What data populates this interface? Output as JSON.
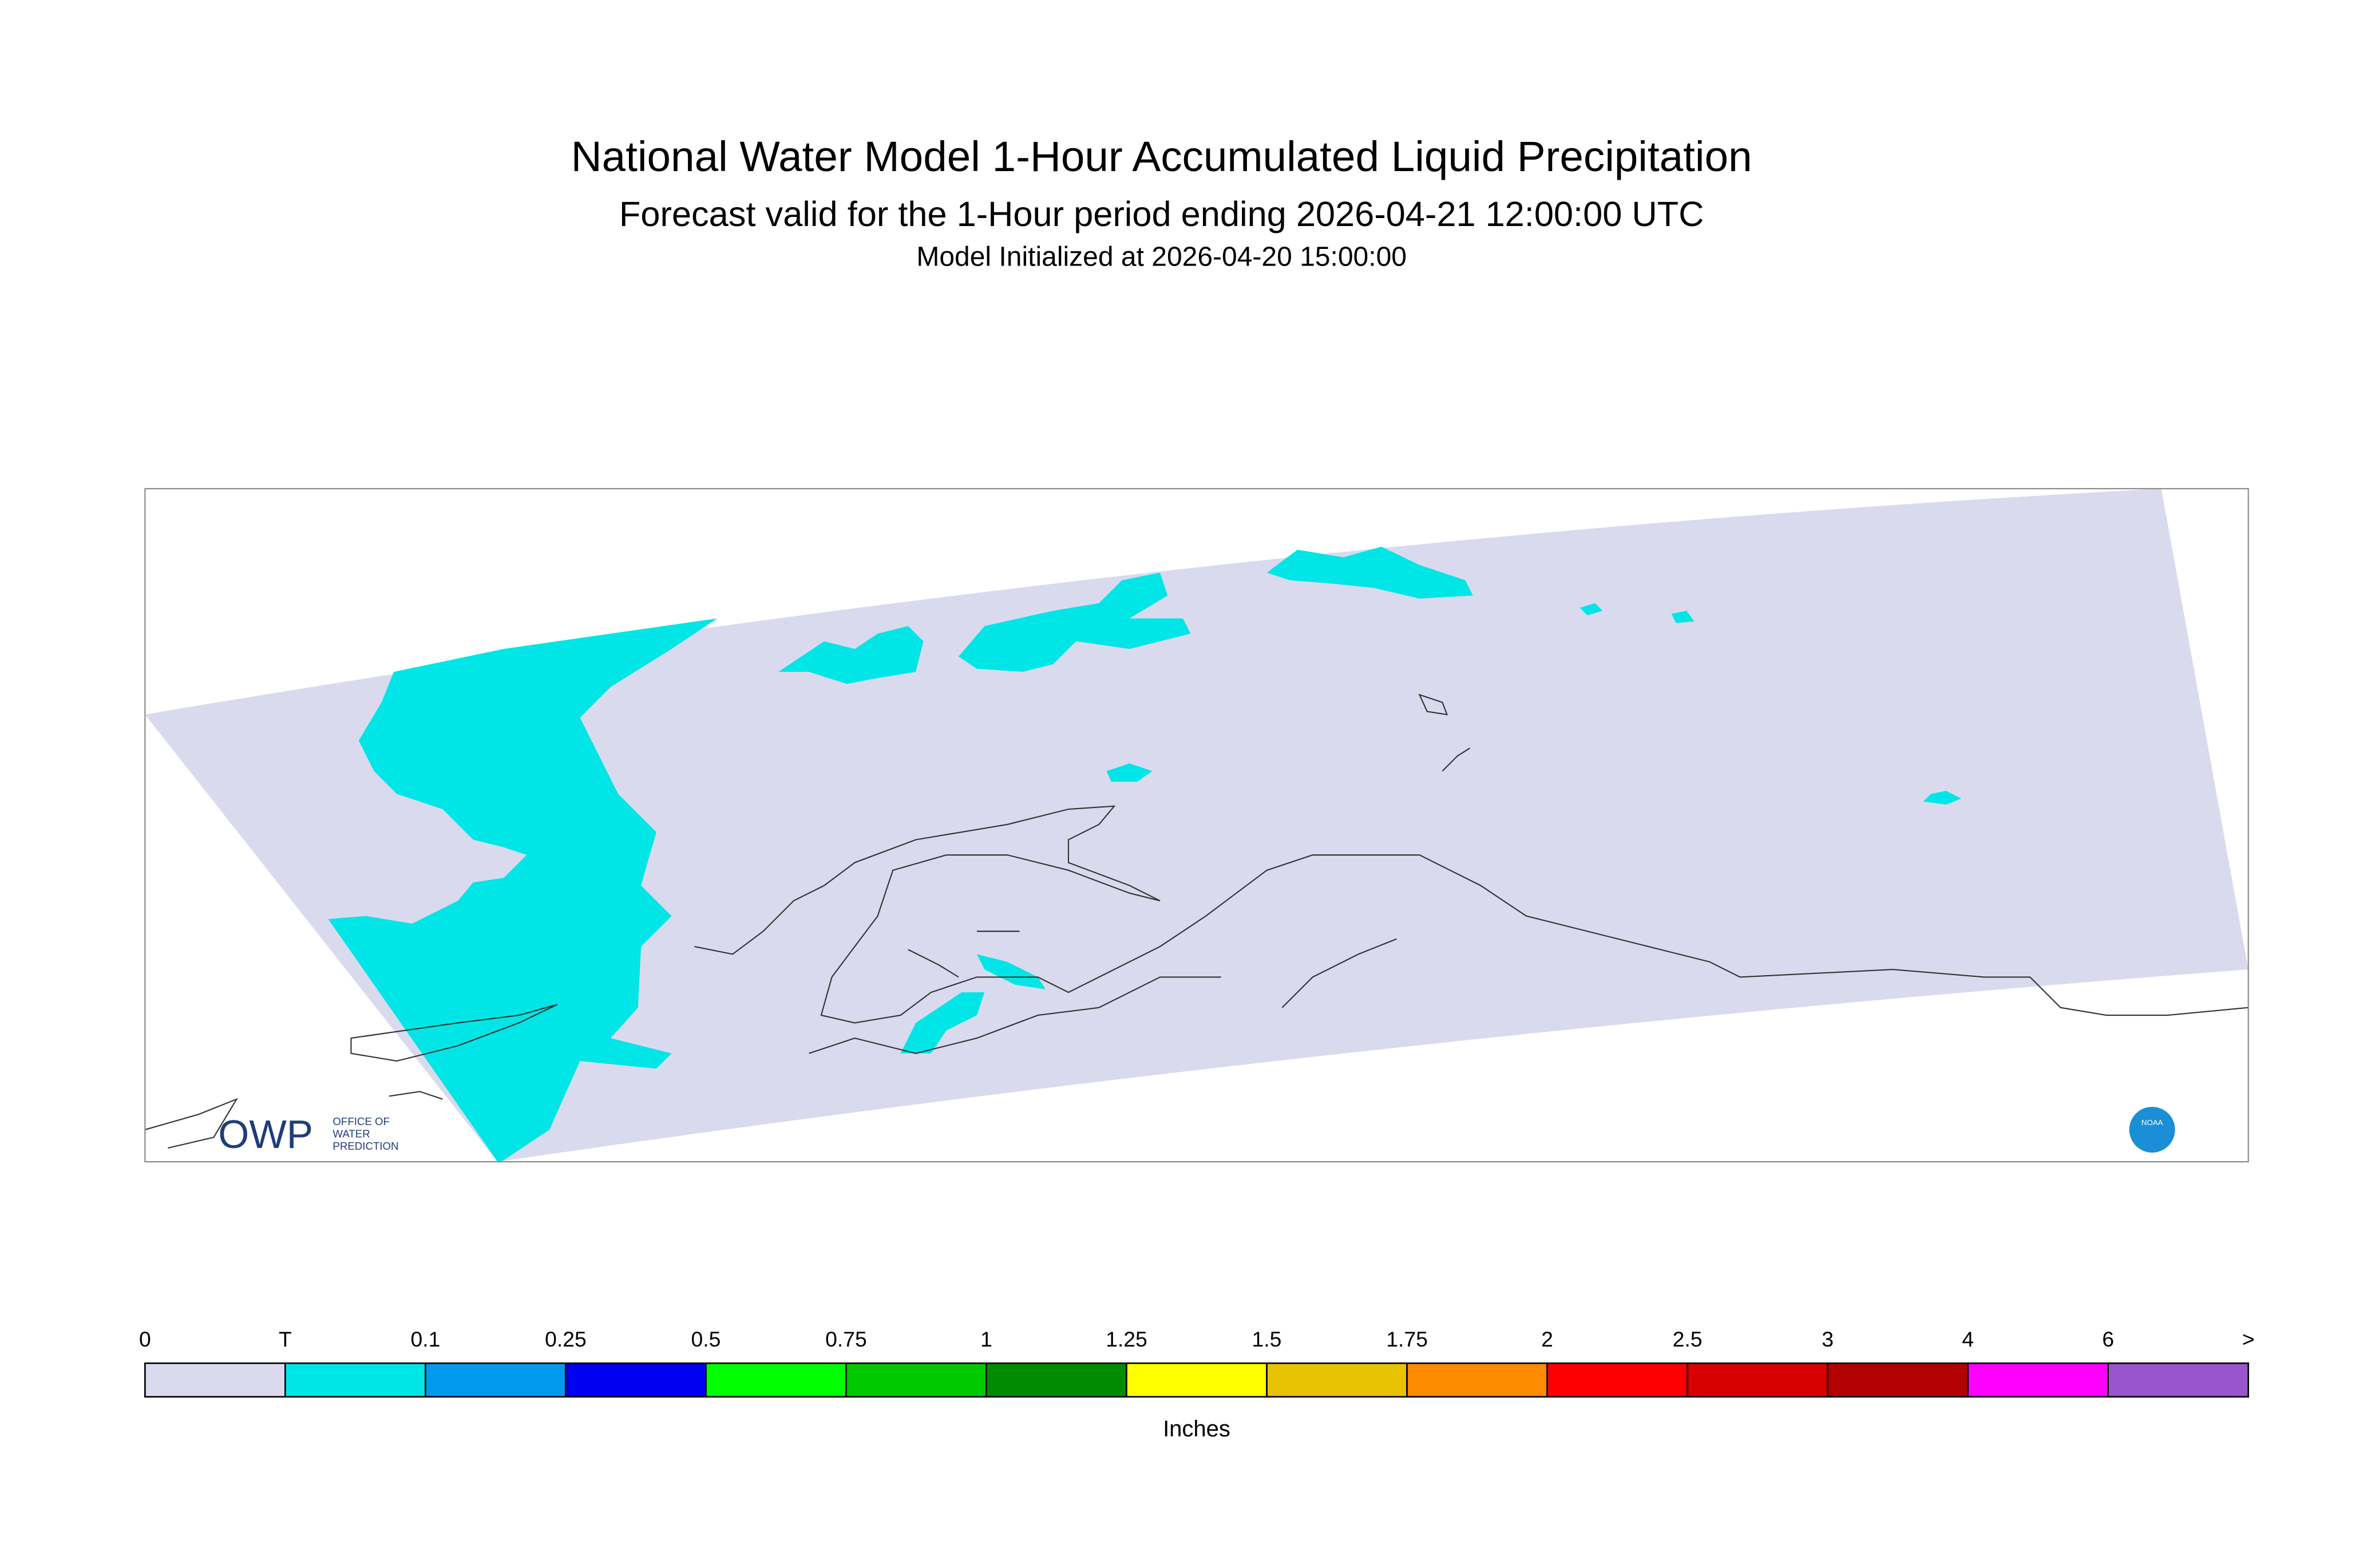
{
  "header": {
    "title": "National Water Model 1-Hour Accumulated Liquid Precipitation",
    "subtitle": "Forecast valid for the 1-Hour period ending 2026-04-21 12:00:00 UTC",
    "init": "Model Initialized at 2026-04-20 15:00:00"
  },
  "logos": {
    "owp": "OWP",
    "owp_text": [
      "OFFICE OF",
      "WATER",
      "PREDICTION"
    ],
    "noaa": "NOAA"
  },
  "legend": {
    "labels": [
      "0",
      "T",
      "0.1",
      "0.25",
      "0.5",
      "0.75",
      "1",
      "1.25",
      "1.5",
      "1.75",
      "2",
      "2.5",
      "3",
      "4",
      "6",
      ">"
    ],
    "colors": [
      "#dadaee",
      "#00e5e5",
      "#0099ee",
      "#0000f0",
      "#00ff00",
      "#00c800",
      "#008c00",
      "#ffff00",
      "#e6c200",
      "#ff8c00",
      "#ff0000",
      "#d80000",
      "#b30000",
      "#ff00ff",
      "#9955cc"
    ],
    "unit": "Inches"
  }
}
